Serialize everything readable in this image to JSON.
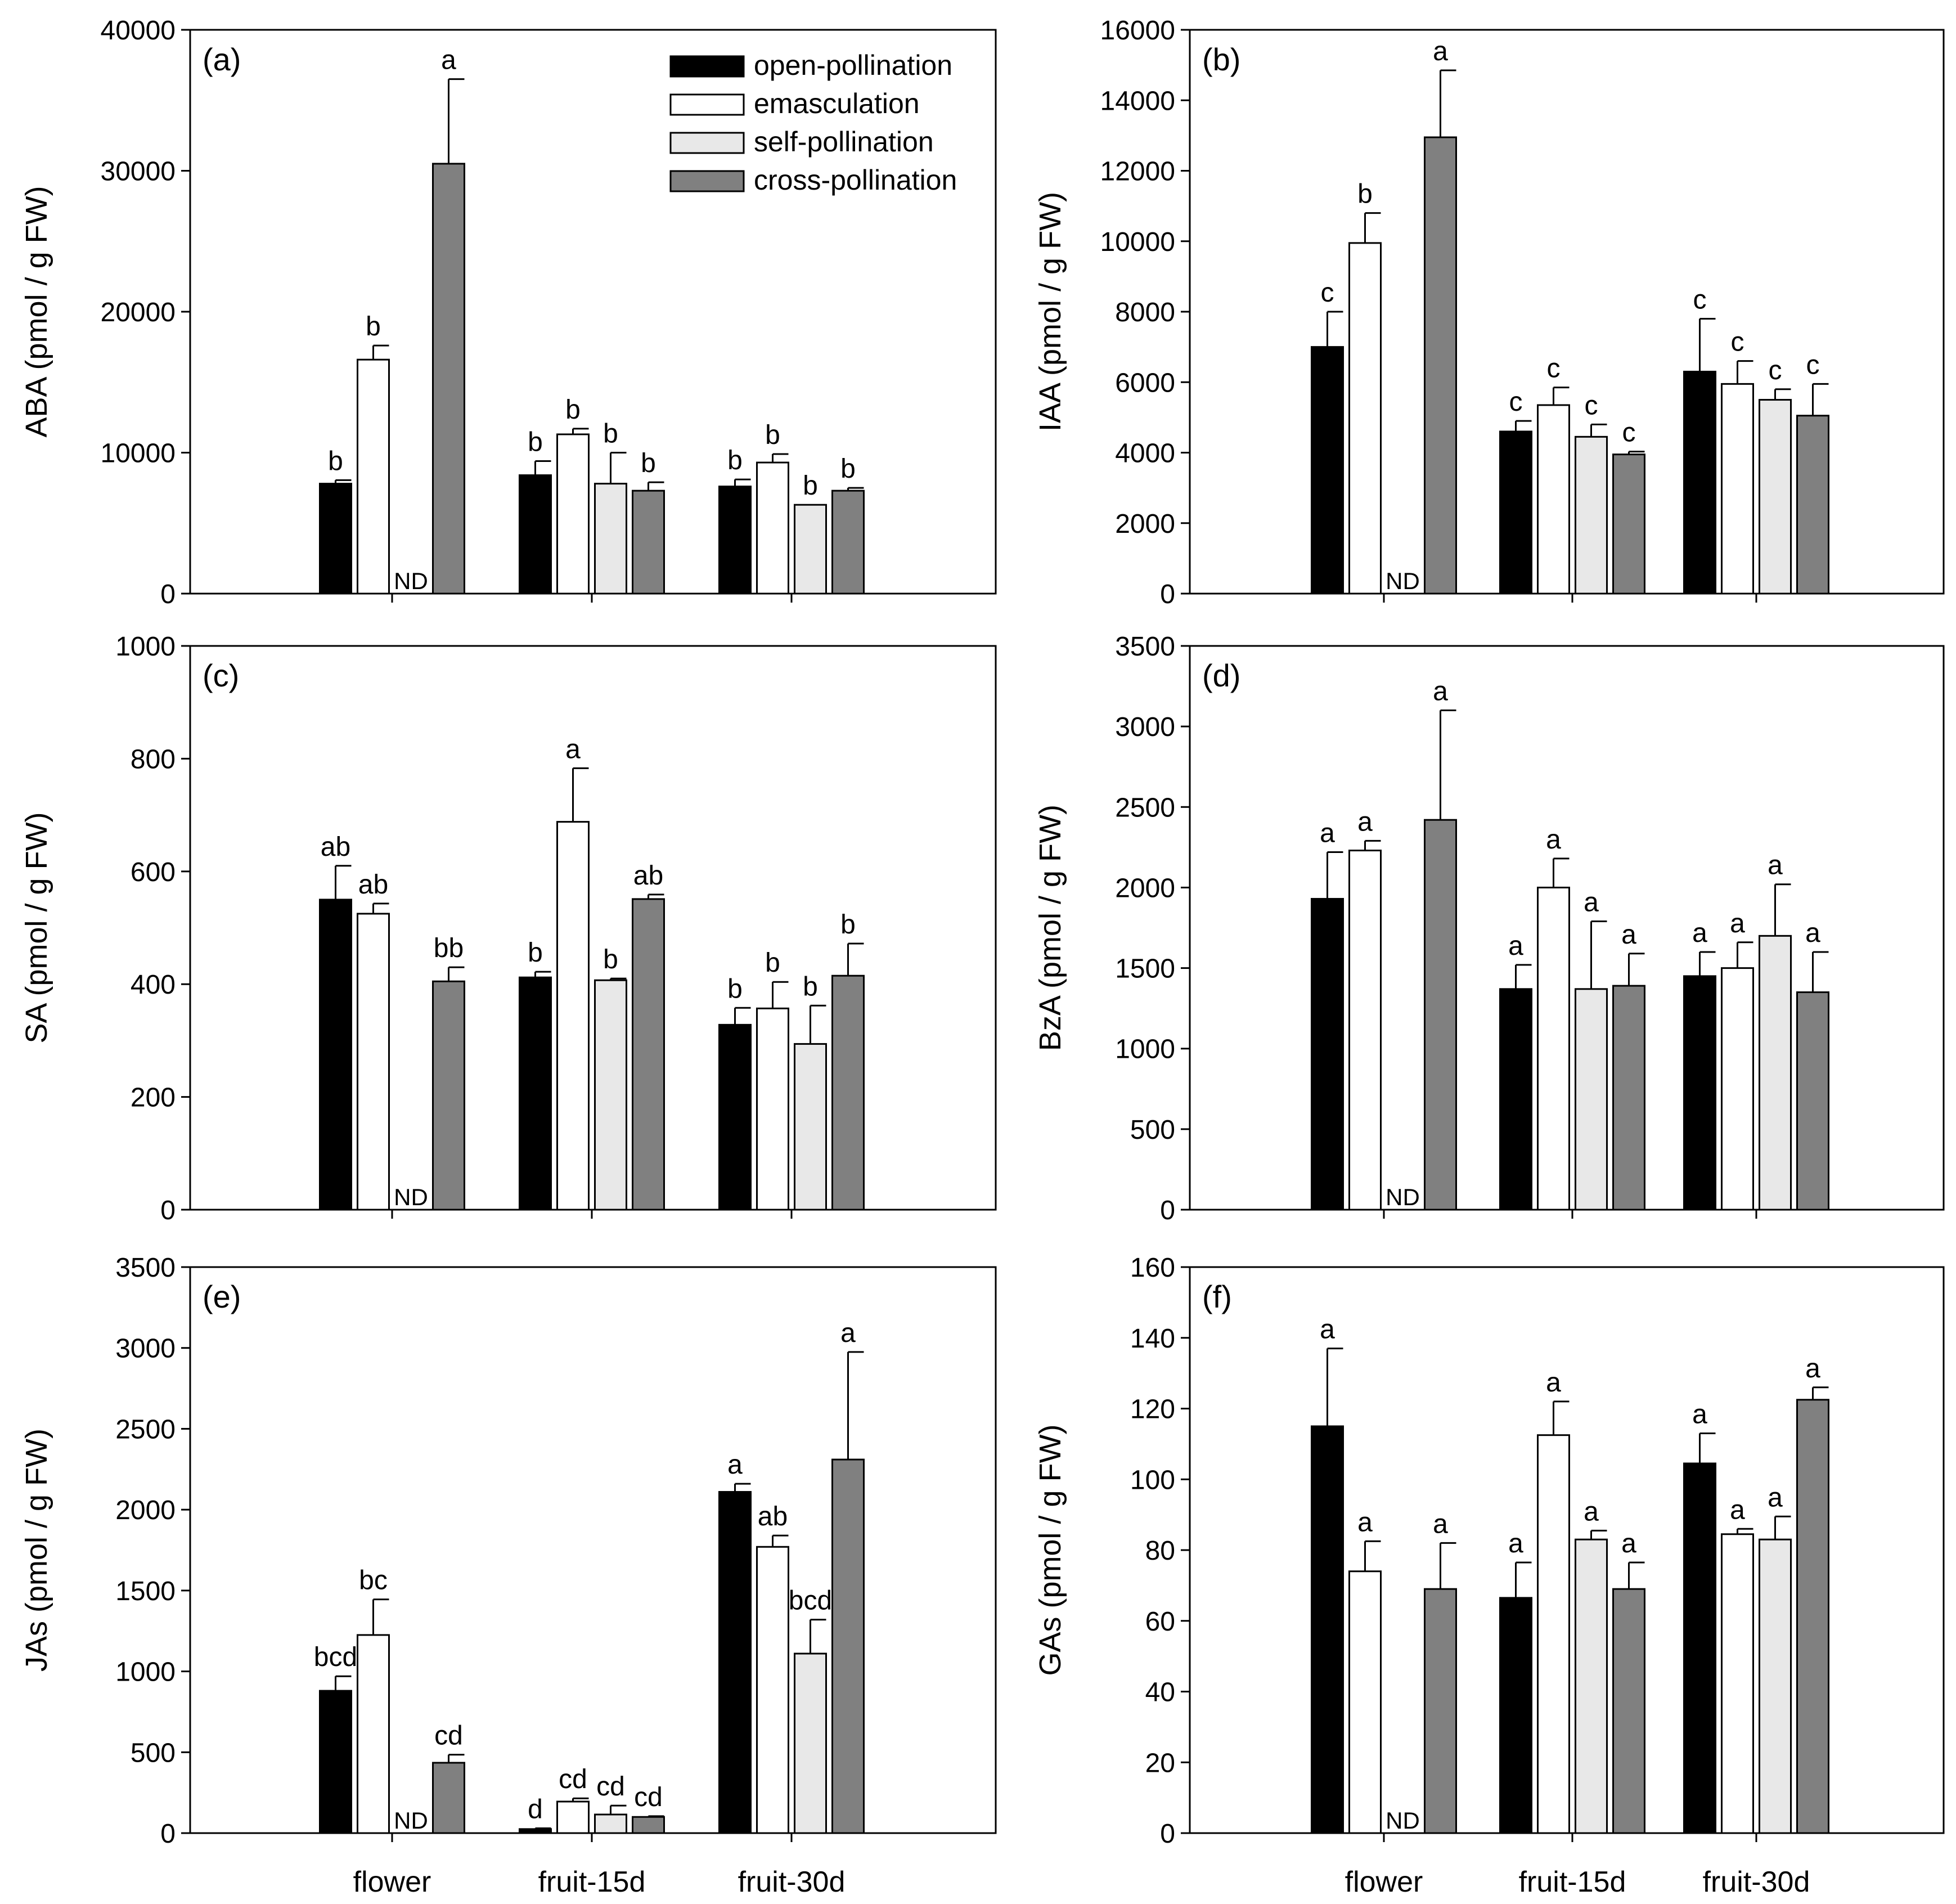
{
  "legend": {
    "placement": "top-right",
    "entries": [
      {
        "name": "open-pollination",
        "color": "#000000"
      },
      {
        "name": "emasculation",
        "color": "#ffffff"
      },
      {
        "name": "self-pollination",
        "color": "#e8e8e8"
      },
      {
        "name": "cross-pollination",
        "color": "#808080"
      }
    ]
  },
  "chart_data": [
    {
      "type": "bar",
      "panel": "(a)",
      "ylabel": "ABA (pmol / g FW)",
      "categories": [
        "flower",
        "fruit-15d",
        "fruit-30d"
      ],
      "show_xticklabels": false,
      "ylim": [
        0,
        40000
      ],
      "yticks": [
        0,
        10000,
        20000,
        30000,
        40000
      ],
      "series": [
        {
          "name": "open-pollination",
          "values": [
            7800,
            8400,
            7600
          ],
          "errors": [
            250,
            1000,
            500
          ],
          "letters": [
            "b",
            "b",
            "b"
          ]
        },
        {
          "name": "emasculation",
          "values": [
            16600,
            11300,
            9300
          ],
          "errors": [
            1000,
            400,
            600
          ],
          "letters": [
            "b",
            "b",
            "b"
          ]
        },
        {
          "name": "self-pollination",
          "values": [
            null,
            7800,
            6300
          ],
          "errors": [
            null,
            2200,
            0
          ],
          "letters": [
            "ND",
            "b",
            "b"
          ]
        },
        {
          "name": "cross-pollination",
          "values": [
            30500,
            7300,
            7300
          ],
          "errors": [
            6000,
            600,
            200
          ],
          "letters": [
            "a",
            "b",
            "b"
          ]
        }
      ]
    },
    {
      "type": "bar",
      "panel": "(b)",
      "ylabel": "IAA (pmol / g FW)",
      "categories": [
        "flower",
        "fruit-15d",
        "fruit-30d"
      ],
      "show_xticklabels": false,
      "ylim": [
        0,
        16000
      ],
      "yticks": [
        0,
        2000,
        4000,
        6000,
        8000,
        10000,
        12000,
        14000,
        16000
      ],
      "series": [
        {
          "name": "open-pollination",
          "values": [
            7000,
            4600,
            6300
          ],
          "errors": [
            1000,
            300,
            1500
          ],
          "letters": [
            "c",
            "c",
            "c"
          ]
        },
        {
          "name": "emasculation",
          "values": [
            9950,
            5350,
            5950
          ],
          "errors": [
            850,
            500,
            650
          ],
          "letters": [
            "b",
            "c",
            "c"
          ]
        },
        {
          "name": "self-pollination",
          "values": [
            null,
            4450,
            5500
          ],
          "errors": [
            null,
            350,
            300
          ],
          "letters": [
            "ND",
            "c",
            "c"
          ]
        },
        {
          "name": "cross-pollination",
          "values": [
            12950,
            3950,
            5050
          ],
          "errors": [
            1900,
            80,
            900
          ],
          "letters": [
            "a",
            "c",
            "c"
          ]
        }
      ]
    },
    {
      "type": "bar",
      "panel": "(c)",
      "ylabel": "SA (pmol / g FW)",
      "categories": [
        "flower",
        "fruit-15d",
        "fruit-30d"
      ],
      "show_xticklabels": false,
      "ylim": [
        0,
        1000
      ],
      "yticks": [
        0,
        200,
        400,
        600,
        800,
        1000
      ],
      "series": [
        {
          "name": "open-pollination",
          "values": [
            550,
            412,
            328
          ],
          "errors": [
            60,
            10,
            30
          ],
          "letters": [
            "ab",
            "b",
            "b"
          ]
        },
        {
          "name": "emasculation",
          "values": [
            525,
            688,
            357
          ],
          "errors": [
            18,
            95,
            47
          ],
          "letters": [
            "ab",
            "a",
            "b"
          ]
        },
        {
          "name": "self-pollination",
          "values": [
            null,
            407,
            294
          ],
          "errors": [
            null,
            3,
            68
          ],
          "letters": [
            "ND",
            "b",
            "b"
          ]
        },
        {
          "name": "cross-pollination",
          "values": [
            405,
            551,
            415
          ],
          "errors": [
            25,
            8,
            57
          ],
          "letters": [
            "bb",
            "ab",
            "b"
          ]
        }
      ]
    },
    {
      "type": "bar",
      "panel": "(d)",
      "ylabel": "BzA (pmol / g FW)",
      "categories": [
        "flower",
        "fruit-15d",
        "fruit-30d"
      ],
      "show_xticklabels": false,
      "ylim": [
        0,
        3500
      ],
      "yticks": [
        0,
        500,
        1000,
        1500,
        2000,
        2500,
        3000,
        3500
      ],
      "series": [
        {
          "name": "open-pollination",
          "values": [
            1930,
            1370,
            1450
          ],
          "errors": [
            290,
            150,
            150
          ],
          "letters": [
            "a",
            "a",
            "a"
          ]
        },
        {
          "name": "emasculation",
          "values": [
            2230,
            2000,
            1500
          ],
          "errors": [
            60,
            180,
            160
          ],
          "letters": [
            "a",
            "a",
            "a"
          ]
        },
        {
          "name": "self-pollination",
          "values": [
            null,
            1370,
            1700
          ],
          "errors": [
            null,
            420,
            320
          ],
          "letters": [
            "ND",
            "a",
            "a"
          ]
        },
        {
          "name": "cross-pollination",
          "values": [
            2420,
            1390,
            1350
          ],
          "errors": [
            680,
            200,
            250
          ],
          "letters": [
            "a",
            "a",
            "a"
          ]
        }
      ]
    },
    {
      "type": "bar",
      "panel": "(e)",
      "ylabel": "JAs (pmol / g FW)",
      "categories": [
        "flower",
        "fruit-15d",
        "fruit-30d"
      ],
      "show_xticklabels": true,
      "ylim": [
        0,
        3500
      ],
      "yticks": [
        0,
        500,
        1000,
        1500,
        2000,
        2500,
        3000,
        3500
      ],
      "series": [
        {
          "name": "open-pollination",
          "values": [
            880,
            25,
            2110
          ],
          "errors": [
            90,
            5,
            50
          ],
          "letters": [
            "bcd",
            "d",
            "a"
          ]
        },
        {
          "name": "emasculation",
          "values": [
            1225,
            195,
            1770
          ],
          "errors": [
            220,
            20,
            70
          ],
          "letters": [
            "bc",
            "cd",
            "ab"
          ]
        },
        {
          "name": "self-pollination",
          "values": [
            null,
            115,
            1110
          ],
          "errors": [
            null,
            55,
            210
          ],
          "letters": [
            "ND",
            "cd",
            "bcd"
          ]
        },
        {
          "name": "cross-pollination",
          "values": [
            435,
            100,
            2310
          ],
          "errors": [
            50,
            5,
            665
          ],
          "letters": [
            "cd",
            "cd",
            "a"
          ]
        }
      ]
    },
    {
      "type": "bar",
      "panel": "(f)",
      "ylabel": "GAs (pmol / g FW)",
      "categories": [
        "flower",
        "fruit-15d",
        "fruit-30d"
      ],
      "show_xticklabels": true,
      "ylim": [
        0,
        160
      ],
      "yticks": [
        0,
        20,
        40,
        60,
        80,
        100,
        120,
        140,
        160
      ],
      "series": [
        {
          "name": "open-pollination",
          "values": [
            115,
            66.5,
            104.5
          ],
          "errors": [
            22,
            10,
            8.5
          ],
          "letters": [
            "a",
            "a",
            "a"
          ]
        },
        {
          "name": "emasculation",
          "values": [
            74,
            112.5,
            84.5
          ],
          "errors": [
            8.5,
            9.5,
            1.5
          ],
          "letters": [
            "a",
            "a",
            "a"
          ]
        },
        {
          "name": "self-pollination",
          "values": [
            null,
            83,
            83
          ],
          "errors": [
            null,
            2.5,
            6.5
          ],
          "letters": [
            "ND",
            "a",
            "a"
          ]
        },
        {
          "name": "cross-pollination",
          "values": [
            69,
            69,
            122.5
          ],
          "errors": [
            13,
            7.5,
            3.5
          ],
          "letters": [
            "a",
            "a",
            "a"
          ]
        }
      ]
    }
  ]
}
